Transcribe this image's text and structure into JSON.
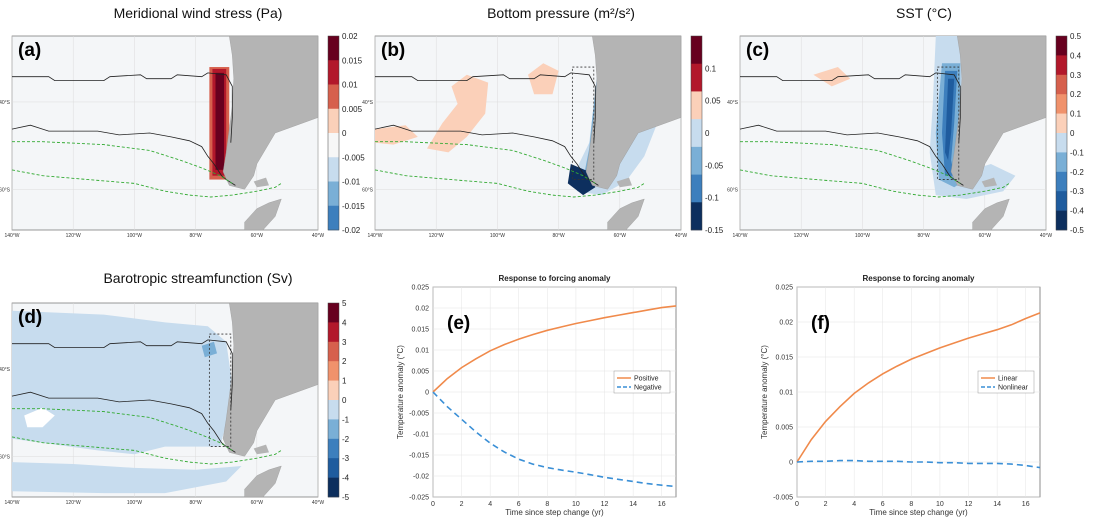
{
  "map_panels": [
    {
      "id": "a",
      "label": "(a)",
      "title": "Meridional wind stress (Pa)",
      "colorbar_ticks": [
        "0.02",
        "0.015",
        "0.01",
        "0.005",
        "0",
        "-0.005",
        "-0.01",
        "-0.015",
        "-0.02"
      ],
      "colorbar_range": [
        -0.02,
        0.02
      ]
    },
    {
      "id": "b",
      "label": "(b)",
      "title": "Bottom pressure (m²/s²)",
      "colorbar_ticks": [
        "0.1",
        "0.05",
        "0",
        "-0.05",
        "-0.1",
        "-0.15"
      ],
      "colorbar_range": [
        -0.15,
        0.15
      ]
    },
    {
      "id": "c",
      "label": "(c)",
      "title": "SST (°C)",
      "colorbar_ticks": [
        "0.5",
        "0.4",
        "0.3",
        "0.2",
        "0.1",
        "0",
        "-0.1",
        "-0.2",
        "-0.3",
        "-0.4",
        "-0.5"
      ],
      "colorbar_range": [
        -0.5,
        0.5
      ]
    },
    {
      "id": "d",
      "label": "(d)",
      "title": "Barotropic streamfunction (Sv)",
      "colorbar_ticks": [
        "5",
        "4",
        "3",
        "2",
        "1",
        "0",
        "-1",
        "-2",
        "-3",
        "-4",
        "-5"
      ],
      "colorbar_range": [
        -5,
        5
      ]
    }
  ],
  "map_axes": {
    "lon_ticks": [
      "140°W",
      "120°W",
      "100°W",
      "80°W",
      "60°W",
      "40°W"
    ],
    "lat_ticks": [
      "40°S",
      "60°S"
    ]
  },
  "colormap": [
    "#0d2f5e",
    "#1f5c9e",
    "#3d7fbd",
    "#7aafd6",
    "#c7dcee",
    "#f7f7f7",
    "#fbd0b9",
    "#f0926c",
    "#d6604d",
    "#b2182b",
    "#67001f"
  ],
  "colors": {
    "land": "#b4b4b4",
    "ocean_bg": "#f4f6f8",
    "contour": "#222222",
    "front": "#33aa33",
    "positive_line": "#f08a4b",
    "negative_line": "#3a8fd6"
  },
  "chart_data": [
    {
      "id": "e",
      "label": "(e)",
      "type": "line",
      "title": "Response to forcing anomaly",
      "xlabel": "Time since step change (yr)",
      "ylabel": "Temperature anomaly (°C)",
      "xlim": [
        0,
        17
      ],
      "ylim": [
        -0.025,
        0.025
      ],
      "xticks": [
        0,
        2,
        4,
        6,
        8,
        10,
        12,
        14,
        16
      ],
      "yticks": [
        -0.025,
        -0.02,
        -0.015,
        -0.01,
        -0.005,
        0,
        0.005,
        0.01,
        0.015,
        0.02,
        0.025
      ],
      "grid": true,
      "legend": "center-right",
      "x": [
        0,
        1,
        2,
        3,
        4,
        5,
        6,
        7,
        8,
        9,
        10,
        11,
        12,
        13,
        14,
        15,
        16,
        17
      ],
      "series": [
        {
          "name": "Positive",
          "style": "solid",
          "values": [
            0,
            0.0032,
            0.0058,
            0.0079,
            0.0098,
            0.0113,
            0.0126,
            0.0137,
            0.0147,
            0.0155,
            0.0163,
            0.017,
            0.0177,
            0.0183,
            0.0189,
            0.0195,
            0.0201,
            0.0205
          ]
        },
        {
          "name": "Negative",
          "style": "dashed",
          "values": [
            0,
            -0.0035,
            -0.0065,
            -0.0095,
            -0.0122,
            -0.0143,
            -0.016,
            -0.0172,
            -0.018,
            -0.0186,
            -0.0191,
            -0.0197,
            -0.0203,
            -0.0208,
            -0.0213,
            -0.0218,
            -0.0222,
            -0.0225
          ]
        }
      ]
    },
    {
      "id": "f",
      "label": "(f)",
      "type": "line",
      "title": "Response to forcing anomaly",
      "xlabel": "Time since step change (yr)",
      "ylabel": "Temperature anomaly (°C)",
      "xlim": [
        0,
        17
      ],
      "ylim": [
        -0.005,
        0.025
      ],
      "xticks": [
        0,
        2,
        4,
        6,
        8,
        10,
        12,
        14,
        16
      ],
      "yticks": [
        -0.005,
        0,
        0.005,
        0.01,
        0.015,
        0.02,
        0.025
      ],
      "grid": true,
      "legend": "center-right",
      "x": [
        0,
        1,
        2,
        3,
        4,
        5,
        6,
        7,
        8,
        9,
        10,
        11,
        12,
        13,
        14,
        15,
        16,
        17
      ],
      "series": [
        {
          "name": "Linear",
          "style": "solid",
          "values": [
            0,
            0.0032,
            0.0058,
            0.0079,
            0.0098,
            0.0113,
            0.0126,
            0.0137,
            0.0147,
            0.0155,
            0.0163,
            0.017,
            0.0177,
            0.0183,
            0.0189,
            0.0196,
            0.0205,
            0.0213
          ]
        },
        {
          "name": "Nonlinear",
          "style": "dashed",
          "values": [
            0,
            0.0001,
            0.0001,
            0.0002,
            0.0002,
            0.0001,
            0.0001,
            0.0001,
            0,
            0,
            -0.0001,
            -0.0001,
            -0.0002,
            -0.0002,
            -0.0002,
            -0.0003,
            -0.0005,
            -0.0008
          ]
        }
      ]
    }
  ]
}
